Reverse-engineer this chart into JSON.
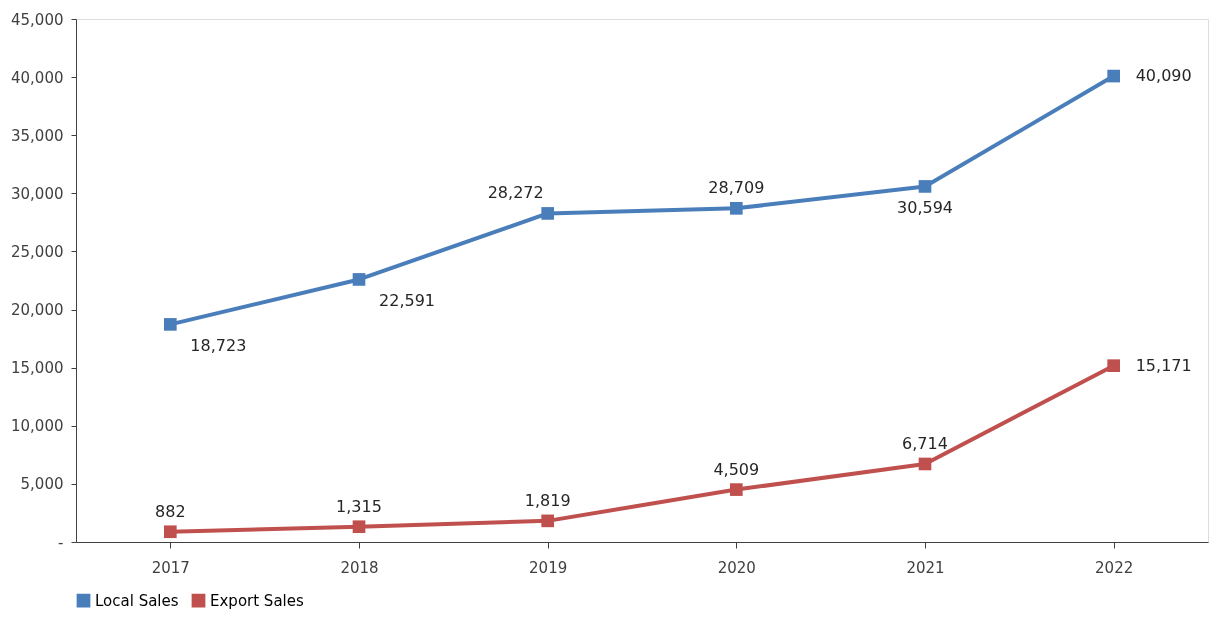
{
  "chart_data": {
    "type": "line",
    "categories": [
      "2017",
      "2018",
      "2019",
      "2020",
      "2021",
      "2022"
    ],
    "series": [
      {
        "name": "Local Sales",
        "color": "#4a7ebb",
        "values": [
          18723,
          22591,
          28272,
          28709,
          30594,
          40090
        ],
        "value_labels": [
          "18,723",
          "22,591",
          "28,272",
          "28,709",
          "30,594",
          "40,090"
        ]
      },
      {
        "name": "Export Sales",
        "color": "#c0504d",
        "values": [
          882,
          1315,
          1819,
          4509,
          6714,
          15171
        ],
        "value_labels": [
          "882",
          "1,315",
          "1,819",
          "4,509",
          "6,714",
          "15,171"
        ]
      }
    ],
    "ylim": [
      0,
      45000
    ],
    "yticks": [
      {
        "value": 0,
        "label": "-"
      },
      {
        "value": 5000,
        "label": "5,000"
      },
      {
        "value": 10000,
        "label": "10,000"
      },
      {
        "value": 15000,
        "label": "15,000"
      },
      {
        "value": 20000,
        "label": "20,000"
      },
      {
        "value": 25000,
        "label": "25,000"
      },
      {
        "value": 30000,
        "label": "30,000"
      },
      {
        "value": 35000,
        "label": "35,000"
      },
      {
        "value": 40000,
        "label": "40,000"
      },
      {
        "value": 45000,
        "label": "45,000"
      }
    ],
    "marker": "square",
    "line_style": "solid",
    "grid": false,
    "legend": "bottom"
  }
}
